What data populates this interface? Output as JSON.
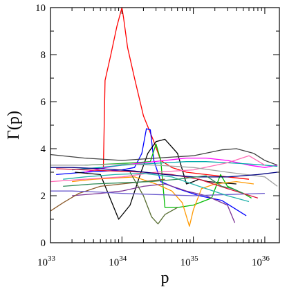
{
  "chart_data": {
    "type": "line",
    "xlabel": "p",
    "ylabel": "Γ(p)",
    "xscale": "log",
    "xlim": [
      1e+33,
      1.6e+36
    ],
    "ylim": [
      0,
      10
    ],
    "x_ticks": [
      {
        "value": 1e+33,
        "base": "10",
        "exp": "33"
      },
      {
        "value": 1e+34,
        "base": "10",
        "exp": "34"
      },
      {
        "value": 1e+35,
        "base": "10",
        "exp": "35"
      },
      {
        "value": 1e+36,
        "base": "10",
        "exp": "36"
      }
    ],
    "y_ticks": [
      "0",
      "2",
      "4",
      "6",
      "8",
      "10"
    ],
    "grid": false,
    "legend": "none",
    "series": [
      {
        "color": "#ff0000",
        "x": [
          5.5e+33,
          5.8e+33,
          7e+33,
          8.5e+33,
          1e+34,
          1.05e+34,
          1.2e+34,
          1.5e+34,
          2e+34,
          2.8e+34,
          3.5e+34,
          5e+34,
          8e+34,
          1.5e+35,
          3e+35,
          6e+35
        ],
        "y": [
          3.2,
          6.9,
          8.0,
          9.2,
          10.0,
          9.6,
          8.3,
          7.0,
          5.4,
          4.3,
          3.5,
          3.2,
          3.0,
          2.9,
          2.8,
          2.7
        ]
      },
      {
        "color": "#0000ff",
        "x": [
          1.2e+33,
          3e+33,
          6e+33,
          1e+34,
          1.5e+34,
          1.9e+34,
          2.2e+34,
          2.5e+34,
          2.8e+34,
          3.5e+34,
          6e+34,
          1.2e+35,
          2.5e+35,
          5.5e+35
        ],
        "y": [
          2.9,
          3.0,
          3.05,
          3.1,
          3.2,
          3.8,
          4.85,
          4.8,
          3.5,
          2.6,
          2.3,
          2.0,
          1.8,
          1.15
        ]
      },
      {
        "color": "#000000",
        "x": [
          2.2e+33,
          5e+33,
          9e+33,
          1.3e+34,
          1.8e+34,
          2.3e+34,
          3e+34,
          4e+34,
          6e+34,
          8e+34,
          1e+35,
          1.2e+35,
          1.6e+35,
          2.5e+35,
          4e+35
        ],
        "y": [
          3.0,
          2.9,
          1.0,
          1.6,
          2.9,
          3.8,
          4.3,
          4.4,
          3.8,
          2.5,
          2.6,
          2.7,
          2.6,
          2.55,
          2.5
        ]
      },
      {
        "color": "#00bb00",
        "x": [
          3e+33,
          7e+33,
          1.5e+34,
          2.5e+34,
          3e+34,
          3.5e+34,
          4e+34,
          6e+34,
          1e+35,
          1.8e+35,
          2.4e+35,
          3e+35,
          5e+35,
          6.5e+35
        ],
        "y": [
          3.3,
          3.35,
          3.4,
          3.45,
          4.2,
          3.5,
          1.5,
          1.5,
          1.6,
          1.9,
          2.9,
          2.4,
          2.1,
          1.9
        ]
      },
      {
        "color": "#ff00ff",
        "x": [
          3e+33,
          6e+33,
          1e+34,
          2e+34,
          4e+34,
          8e+34,
          1.5e+35,
          3e+35,
          6e+35,
          1e+36,
          1.5e+36
        ],
        "y": [
          3.0,
          3.2,
          3.3,
          3.4,
          3.5,
          3.6,
          3.6,
          3.5,
          3.3,
          3.2,
          3.3
        ]
      },
      {
        "color": "#00aaaa",
        "x": [
          2e+33,
          5e+33,
          1e+34,
          2e+34,
          4e+34,
          8e+34,
          1.5e+35,
          3e+35,
          6e+35,
          1e+36,
          1.5e+36
        ],
        "y": [
          3.1,
          3.2,
          3.3,
          3.35,
          3.4,
          3.45,
          3.45,
          3.4,
          3.35,
          3.3,
          3.25
        ]
      },
      {
        "color": "#ff9900",
        "x": [
          2e+33,
          4e+33,
          8e+33,
          1.5e+34,
          3e+34,
          5e+34,
          7e+34,
          8.8e+34,
          1e+35,
          1.3e+35,
          2e+35,
          4e+35,
          7e+35
        ],
        "y": [
          2.6,
          2.7,
          2.75,
          2.8,
          2.5,
          2.2,
          1.7,
          0.7,
          1.4,
          2.3,
          2.5,
          2.6,
          2.5
        ]
      },
      {
        "color": "#7b3294",
        "x": [
          2e+33,
          5e+33,
          1e+34,
          2e+34,
          4e+34,
          8e+34,
          1.5e+35,
          3e+35,
          3.8e+35
        ],
        "y": [
          2.0,
          2.1,
          2.2,
          2.4,
          2.5,
          2.2,
          2.0,
          1.6,
          0.85
        ]
      },
      {
        "color": "#8b5a2b",
        "x": [
          1e+33,
          1.5e+33,
          2.5e+33,
          5e+33,
          1e+34,
          2e+34,
          4e+34
        ],
        "y": [
          1.35,
          1.7,
          2.1,
          2.4,
          2.5,
          2.6,
          2.7
        ]
      },
      {
        "color": "#404040",
        "x": [
          1e+33,
          3e+33,
          1e+34,
          3e+34,
          1e+35,
          2.5e+35,
          4e+35,
          7e+35,
          1e+36,
          1.5e+36
        ],
        "y": [
          3.75,
          3.6,
          3.5,
          3.6,
          3.7,
          3.95,
          4.0,
          3.8,
          3.5,
          3.3
        ]
      },
      {
        "color": "#556b2f",
        "x": [
          1.3e+34,
          2e+34,
          2.6e+34,
          3.2e+34,
          4e+34,
          6e+34
        ],
        "y": [
          3.0,
          2.0,
          1.1,
          0.8,
          1.2,
          1.5
        ]
      },
      {
        "color": "#ff69b4",
        "x": [
          1e+33,
          3e+33,
          1e+34,
          3e+34,
          1e+35,
          3e+35,
          6e+35,
          1e+36
        ],
        "y": [
          2.6,
          2.7,
          2.8,
          3.0,
          3.1,
          3.4,
          3.7,
          3.3
        ]
      },
      {
        "color": "#a0a0a0",
        "x": [
          1e+33,
          3e+33,
          1e+34,
          3e+34,
          1e+35,
          3e+35,
          1e+36,
          1.5e+36
        ],
        "y": [
          3.3,
          3.3,
          3.35,
          3.3,
          3.2,
          3.0,
          2.8,
          2.4
        ]
      },
      {
        "color": "#6a5acd",
        "x": [
          1e+33,
          2e+33,
          5e+33,
          1e+34,
          3e+34,
          1e+35,
          3e+35,
          1e+36
        ],
        "y": [
          2.2,
          2.2,
          2.15,
          2.1,
          2.05,
          2.0,
          2.05,
          2.1
        ]
      },
      {
        "color": "#20b2aa",
        "x": [
          1.5e+33,
          3e+33,
          8e+33,
          2e+34,
          5e+34,
          1.2e+35,
          3e+35,
          6e+35
        ],
        "y": [
          2.7,
          2.8,
          2.9,
          2.95,
          2.8,
          2.4,
          2.0,
          1.75
        ]
      },
      {
        "color": "#dc143c",
        "x": [
          1.2e+33,
          3e+33,
          8e+33,
          2e+34,
          5e+34,
          1.2e+35,
          3e+35,
          8e+35
        ],
        "y": [
          3.15,
          3.1,
          3.05,
          3.0,
          2.9,
          2.7,
          2.3,
          1.9
        ]
      },
      {
        "color": "#000080",
        "x": [
          1e+33,
          2e+33,
          5e+33,
          1.5e+34,
          4e+34,
          1e+35,
          3e+35,
          8e+35,
          1.5e+36
        ],
        "y": [
          3.2,
          3.2,
          3.15,
          3.05,
          2.9,
          2.8,
          2.8,
          2.9,
          3.0
        ]
      },
      {
        "color": "#2e8b57",
        "x": [
          1.5e+33,
          4e+33,
          1e+34,
          2.5e+34,
          6e+34,
          1.5e+35,
          2.5e+35,
          3.5e+35,
          5e+35
        ],
        "y": [
          2.4,
          2.5,
          2.55,
          2.6,
          2.7,
          2.85,
          2.4,
          2.3,
          2.1
        ]
      }
    ]
  }
}
